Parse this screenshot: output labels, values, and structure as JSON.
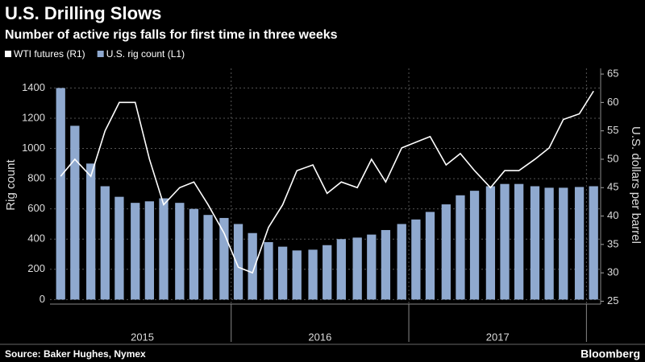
{
  "title": "U.S. Drilling Slows",
  "subtitle": "Number of active rigs falls for first time in three weeks",
  "source": "Source: Baker Hughes, Nymex",
  "brand": "Bloomberg",
  "chart_data": {
    "type": "bar",
    "ylabel": "Rig count",
    "y2label": "U.S. dollars per barrel",
    "year_labels": [
      "2015",
      "2016",
      "2017"
    ],
    "x": [
      2015.04,
      2015.12,
      2015.21,
      2015.29,
      2015.37,
      2015.46,
      2015.54,
      2015.62,
      2015.71,
      2015.79,
      2015.87,
      2015.96,
      2016.04,
      2016.12,
      2016.21,
      2016.29,
      2016.37,
      2016.46,
      2016.54,
      2016.62,
      2016.71,
      2016.79,
      2016.87,
      2016.96,
      2017.04,
      2017.12,
      2017.21,
      2017.29,
      2017.37,
      2017.46,
      2017.54,
      2017.62,
      2017.71,
      2017.79,
      2017.87,
      2017.96,
      2018.04
    ],
    "xlim": [
      2014.98,
      2018.08
    ],
    "xticks": [
      2016,
      2017,
      2018
    ],
    "ylim": [
      -30,
      1530
    ],
    "yticks": [
      0,
      200,
      400,
      600,
      800,
      1000,
      1200,
      1400
    ],
    "y2lim": [
      24.5,
      66
    ],
    "y2ticks": [
      25,
      30,
      35,
      40,
      45,
      50,
      55,
      60,
      65
    ],
    "grid": true,
    "series": [
      {
        "name": "U.S. rig count  (L1)",
        "color": "#8fa9cf",
        "type": "bar",
        "values": [
          1400,
          1150,
          900,
          750,
          680,
          640,
          650,
          670,
          640,
          600,
          560,
          540,
          500,
          440,
          380,
          350,
          325,
          330,
          360,
          400,
          410,
          430,
          460,
          500,
          530,
          580,
          630,
          690,
          720,
          750,
          765,
          765,
          750,
          740,
          740,
          745,
          750
        ]
      },
      {
        "name": "WTI futures (R1)",
        "color": "#ffffff",
        "type": "line",
        "axis": "y2",
        "values": [
          47,
          50,
          47,
          55,
          60,
          60,
          50,
          42,
          45,
          46,
          42,
          37,
          31,
          30,
          38,
          42,
          48,
          49,
          44,
          46,
          45,
          50,
          46,
          52,
          53,
          54,
          49,
          51,
          48,
          45,
          48,
          48,
          50,
          52,
          57,
          58,
          62
        ]
      }
    ]
  }
}
